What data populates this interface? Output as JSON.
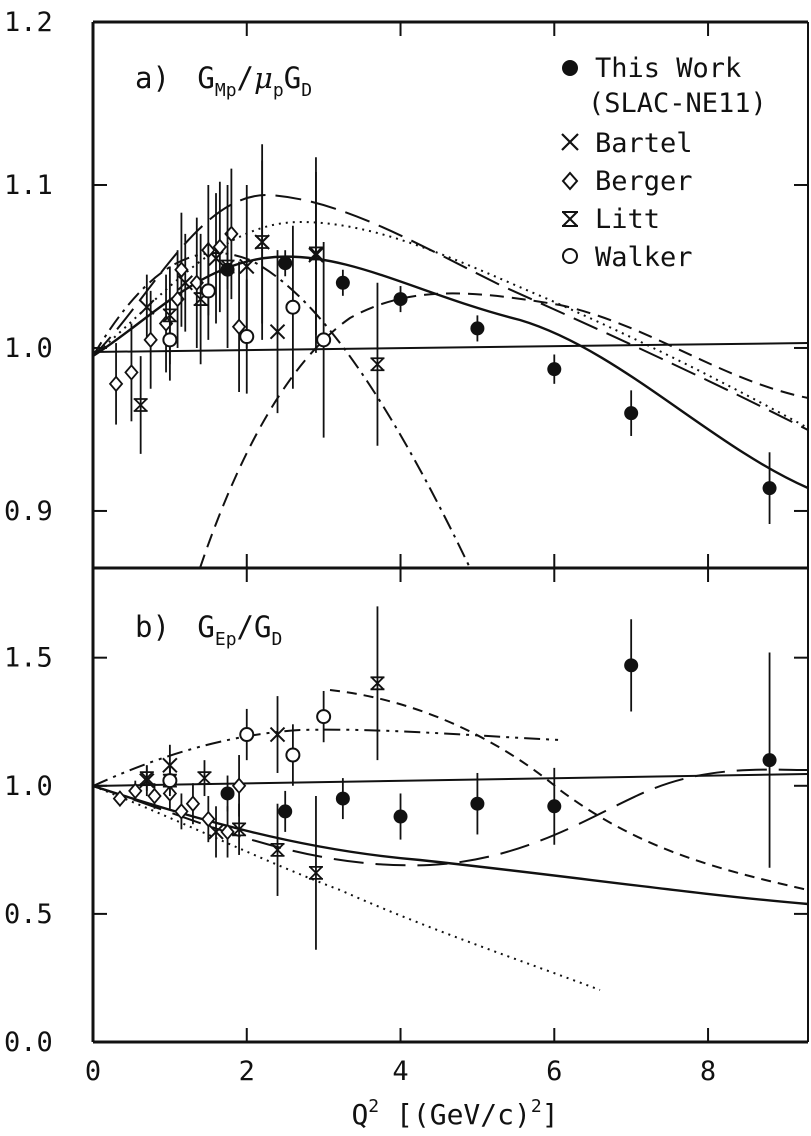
{
  "chart_data": [
    {
      "id": "a",
      "type": "scatter",
      "title": "a) G_Mp/μ_pG_D",
      "title_parts": {
        "prefix": "a)",
        "main1": "G",
        "sub1": "Mp",
        "slash": "/",
        "mu": "μ",
        "sub2": "p",
        "main2": "G",
        "sub3": "D"
      },
      "xlim": [
        0,
        9.3
      ],
      "ylim": [
        0.865,
        1.2
      ],
      "yticks": [
        0.9,
        1.0,
        1.1,
        1.2
      ],
      "ytick_labels": [
        "0.9",
        "1.0",
        "1.1",
        "1.2"
      ],
      "legend_position": "top-right",
      "legend": [
        {
          "marker": "filled-circle",
          "label": "This Work"
        },
        {
          "marker": "none",
          "label": "(SLAC-NE11)"
        },
        {
          "marker": "x",
          "label": "Bartel"
        },
        {
          "marker": "diamond",
          "label": "Berger"
        },
        {
          "marker": "barred-x",
          "label": "Litt"
        },
        {
          "marker": "open-circle",
          "label": "Walker"
        }
      ],
      "series": [
        {
          "name": "This Work",
          "marker": "filled-circle",
          "points": [
            [
              1.75,
              1.048,
              0.012
            ],
            [
              2.5,
              1.052,
              0.008
            ],
            [
              3.25,
              1.04,
              0.008
            ],
            [
              4.0,
              1.03,
              0.008
            ],
            [
              5.0,
              1.012,
              0.008
            ],
            [
              6.0,
              0.987,
              0.009
            ],
            [
              7.0,
              0.96,
              0.014
            ],
            [
              8.8,
              0.914,
              0.022
            ]
          ]
        },
        {
          "name": "Bartel",
          "marker": "x",
          "points": [
            [
              0.7,
              1.025,
              0.02
            ],
            [
              1.2,
              1.04,
              0.03
            ],
            [
              1.6,
              1.055,
              0.04
            ],
            [
              2.0,
              1.05,
              0.05
            ],
            [
              2.2,
              1.065,
              0.06
            ],
            [
              2.4,
              1.01,
              0.05
            ],
            [
              2.9,
              1.057,
              0.06
            ]
          ]
        },
        {
          "name": "Berger",
          "marker": "diamond",
          "points": [
            [
              0.3,
              0.978,
              0.025
            ],
            [
              0.5,
              0.985,
              0.03
            ],
            [
              0.75,
              1.005,
              0.03
            ],
            [
              0.95,
              1.015,
              0.03
            ],
            [
              1.1,
              1.03,
              0.03
            ],
            [
              1.15,
              1.048,
              0.035
            ],
            [
              1.35,
              1.04,
              0.04
            ],
            [
              1.5,
              1.06,
              0.04
            ],
            [
              1.65,
              1.062,
              0.04
            ],
            [
              1.8,
              1.07,
              0.04
            ],
            [
              1.9,
              1.013,
              0.04
            ]
          ]
        },
        {
          "name": "Litt",
          "marker": "barred-x",
          "points": [
            [
              0.62,
              0.965,
              0.03
            ],
            [
              1.0,
              1.02,
              0.03
            ],
            [
              1.4,
              1.03,
              0.04
            ],
            [
              1.75,
              1.05,
              0.05
            ],
            [
              2.2,
              1.065,
              0.05
            ],
            [
              2.9,
              1.058,
              0.05
            ],
            [
              3.7,
              0.99,
              0.05
            ]
          ]
        },
        {
          "name": "Walker",
          "marker": "open-circle",
          "points": [
            [
              1.0,
              1.005,
              0.025
            ],
            [
              1.5,
              1.035,
              0.03
            ],
            [
              2.0,
              1.007,
              0.035
            ],
            [
              2.6,
              1.025,
              0.05
            ],
            [
              3.0,
              1.005,
              0.06
            ]
          ]
        }
      ]
    },
    {
      "id": "b",
      "type": "scatter",
      "title": "b) G_Ep/G_D",
      "title_parts": {
        "prefix": "b)",
        "main1": "G",
        "sub1": "Ep",
        "slash": "/",
        "main2": "G",
        "sub2": "D"
      },
      "xlim": [
        0,
        9.3
      ],
      "ylim": [
        0.0,
        1.85
      ],
      "yticks": [
        0.0,
        0.5,
        1.0,
        1.5
      ],
      "ytick_labels": [
        "0.0",
        "0.5",
        "1.0",
        "1.5"
      ],
      "xticks": [
        0,
        2,
        4,
        6,
        8
      ],
      "xtick_labels": [
        "0",
        "2",
        "4",
        "6",
        "8"
      ],
      "xlabel": "Q² [(GeV/c)²]",
      "xlabel_parts": {
        "q": "Q",
        "sup1": "2",
        "mid": " [(GeV/c)",
        "sup2": "2",
        "end": "]"
      },
      "series": [
        {
          "name": "This Work",
          "marker": "filled-circle",
          "points": [
            [
              1.75,
              0.97,
              0.07
            ],
            [
              2.5,
              0.9,
              0.08
            ],
            [
              3.25,
              0.95,
              0.08
            ],
            [
              4.0,
              0.88,
              0.09
            ],
            [
              5.0,
              0.93,
              0.12
            ],
            [
              6.0,
              0.92,
              0.15
            ],
            [
              7.0,
              1.47,
              0.18
            ],
            [
              8.8,
              1.1,
              0.42
            ]
          ]
        },
        {
          "name": "Bartel",
          "marker": "x",
          "points": [
            [
              0.7,
              1.02,
              0.06
            ],
            [
              1.0,
              1.08,
              0.08
            ],
            [
              1.6,
              0.82,
              0.1
            ],
            [
              2.4,
              1.2,
              0.15
            ]
          ]
        },
        {
          "name": "Berger",
          "marker": "diamond",
          "points": [
            [
              0.35,
              0.95,
              0.03
            ],
            [
              0.55,
              0.98,
              0.04
            ],
            [
              0.8,
              0.96,
              0.05
            ],
            [
              1.0,
              0.97,
              0.06
            ],
            [
              1.15,
              0.9,
              0.07
            ],
            [
              1.3,
              0.93,
              0.08
            ],
            [
              1.5,
              0.87,
              0.09
            ],
            [
              1.75,
              0.82,
              0.1
            ],
            [
              1.9,
              1.0,
              0.12
            ]
          ]
        },
        {
          "name": "Litt",
          "marker": "barred-x",
          "points": [
            [
              0.7,
              1.03,
              0.05
            ],
            [
              1.0,
              1.02,
              0.06
            ],
            [
              1.45,
              1.03,
              0.07
            ],
            [
              1.9,
              0.83,
              0.1
            ],
            [
              2.4,
              0.75,
              0.18
            ],
            [
              2.9,
              0.66,
              0.3
            ],
            [
              3.7,
              1.4,
              0.3
            ]
          ]
        },
        {
          "name": "Walker",
          "marker": "open-circle",
          "points": [
            [
              1.0,
              1.02,
              0.05
            ],
            [
              2.0,
              1.2,
              0.1
            ],
            [
              2.6,
              1.12,
              0.12
            ],
            [
              3.0,
              1.27,
              0.1
            ]
          ]
        }
      ]
    }
  ]
}
